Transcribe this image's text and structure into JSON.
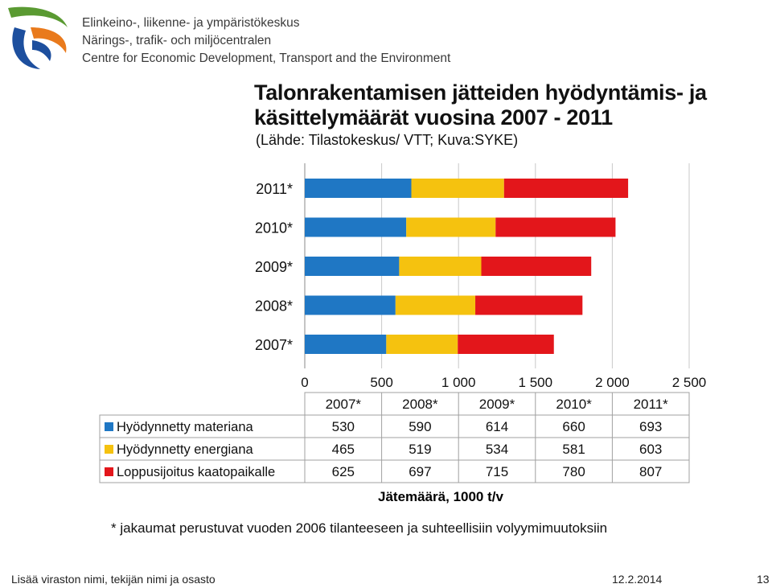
{
  "header": {
    "logo_icon": "ely-centre-logo-icon",
    "org_lines": [
      "Elinkeino-, liikenne- ja ympäristökeskus",
      "Närings-, trafik- och miljöcentralen",
      "Centre for Economic Development, Transport and the Environment"
    ]
  },
  "chart_data": {
    "type": "bar",
    "orientation": "horizontal",
    "stacked": true,
    "title_lines": [
      "Talonrakentamisen jätteiden hyödyntämis- ja",
      "käsittelymäärät vuosina 2007 - 2011"
    ],
    "subtitle": "(Lähde: Tilastokeskus/ VTT; Kuva:SYKE)",
    "categories": [
      "2007*",
      "2008*",
      "2009*",
      "2010*",
      "2011*"
    ],
    "series": [
      {
        "name": "Hyödynnetty materiana",
        "color": "#1f77c4",
        "values": [
          530,
          590,
          614,
          660,
          693
        ]
      },
      {
        "name": "Hyödynnetty energiana",
        "color": "#f5c20f",
        "values": [
          465,
          519,
          534,
          581,
          603
        ]
      },
      {
        "name": "Loppusijoitus kaatopaikalle",
        "color": "#e3161b",
        "values": [
          625,
          697,
          715,
          780,
          807
        ]
      }
    ],
    "xticks": [
      "0",
      "500",
      "1 000",
      "1 500",
      "2 000",
      "2 500"
    ],
    "xlim": [
      0,
      2500
    ],
    "xlabel": "Jätemäärä, 1000 t/v",
    "grid": true,
    "data_table": true
  },
  "footnote": "* jakaumat perustuvat vuoden 2006 tilanteeseen ja suhteellisiin volyymimuutoksiin",
  "footer": {
    "left": "Lisää viraston nimi, tekijän nimi ja osasto",
    "date": "12.2.2014",
    "page": "13"
  }
}
